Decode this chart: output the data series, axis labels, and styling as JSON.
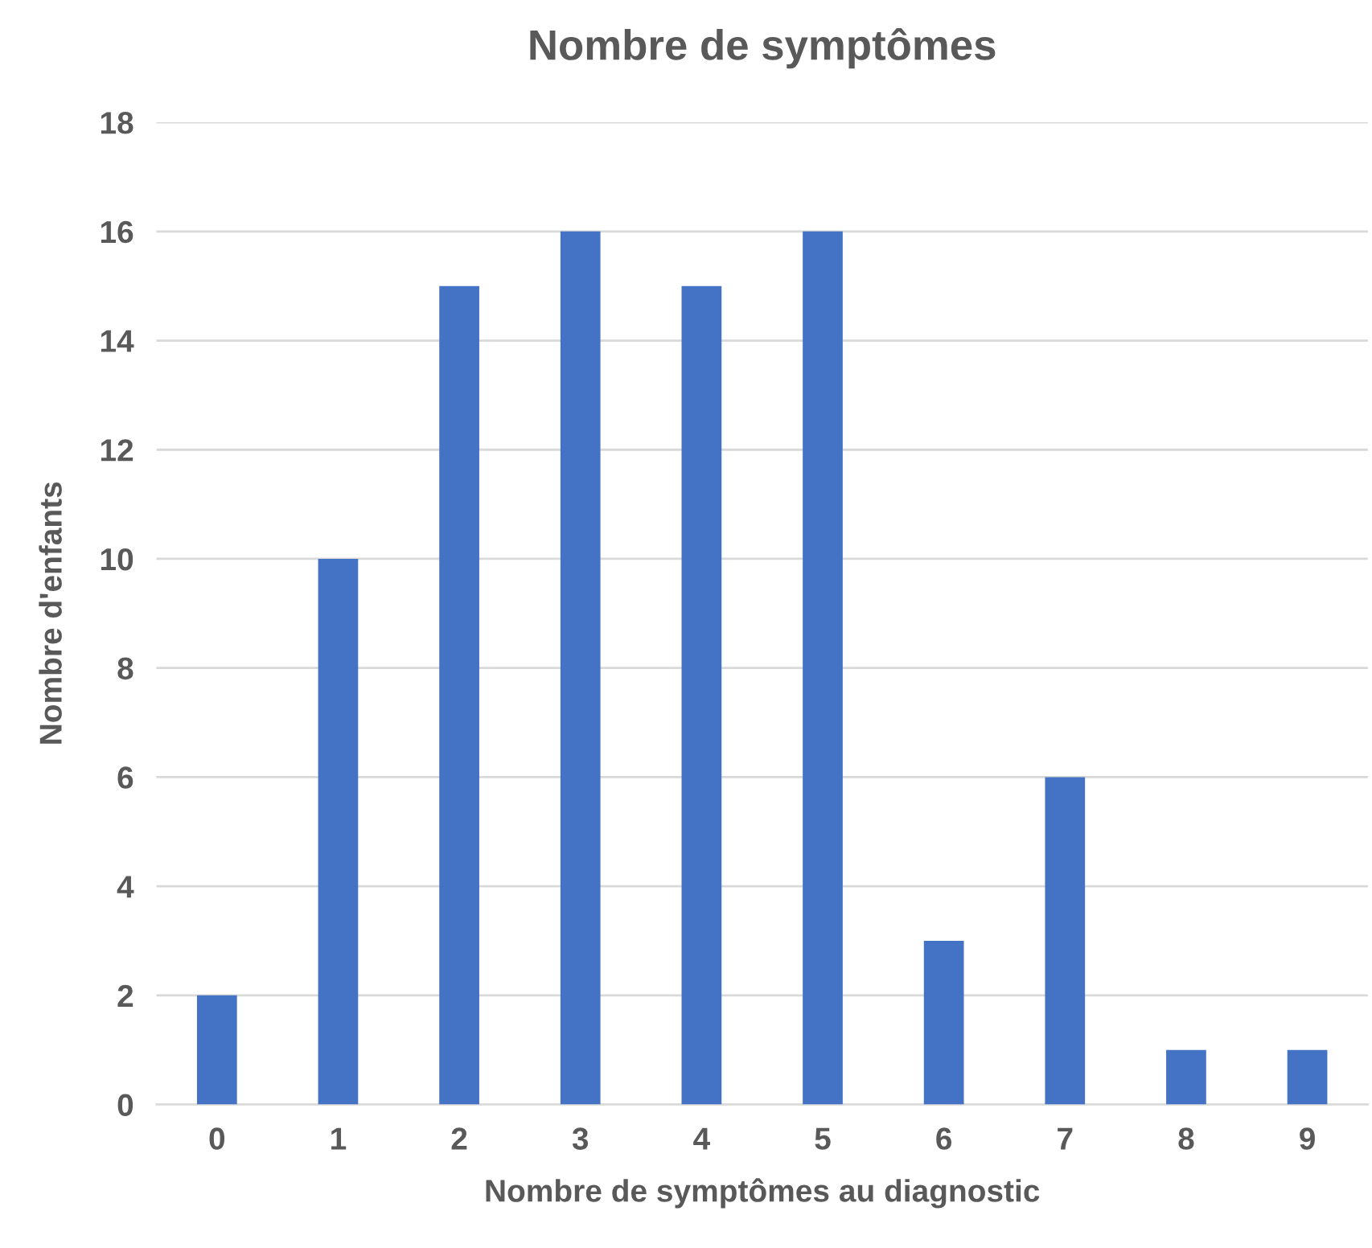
{
  "chart_data": {
    "type": "bar",
    "title": "Nombre de symptômes",
    "xlabel": "Nombre de symptômes au diagnostic",
    "ylabel": "Nombre d'enfants",
    "categories": [
      "0",
      "1",
      "2",
      "3",
      "4",
      "5",
      "6",
      "7",
      "8",
      "9"
    ],
    "values": [
      2,
      10,
      15,
      16,
      15,
      16,
      3,
      6,
      1,
      1
    ],
    "color": "#4472c4",
    "ylim": [
      0,
      18
    ],
    "yticks": [
      0,
      2,
      4,
      6,
      8,
      10,
      12,
      14,
      16,
      18
    ],
    "grid": "y",
    "legend": false
  }
}
